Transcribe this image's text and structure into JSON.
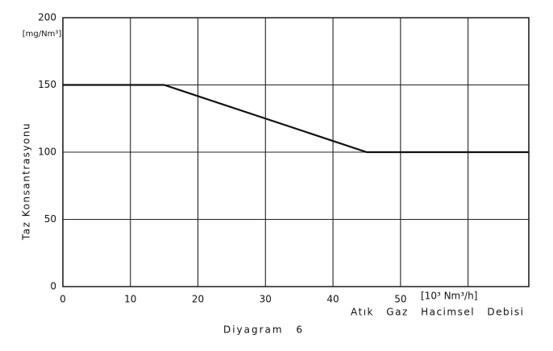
{
  "chart_data": {
    "type": "line",
    "y_unit": "[mg/Nm³]",
    "y_label": "Taz Konsantrasyonu",
    "x_unit": "[10³ Nm³/h]",
    "x_label": "Atık Gaz Hacimsel Debisi",
    "caption": "Diyagram 6",
    "series": [
      {
        "color": "#111111",
        "x": [
          0,
          15,
          45,
          69
        ],
        "values": [
          150,
          150,
          100,
          100
        ]
      }
    ],
    "xlim": [
      0,
      69
    ],
    "ylim": [
      0,
      200
    ],
    "xticks": [
      0,
      10,
      20,
      30,
      40,
      50
    ],
    "xgrid": [
      10,
      20,
      30,
      40,
      50,
      60
    ],
    "yticks": [
      0,
      50,
      100,
      150,
      200
    ],
    "grid": true
  }
}
